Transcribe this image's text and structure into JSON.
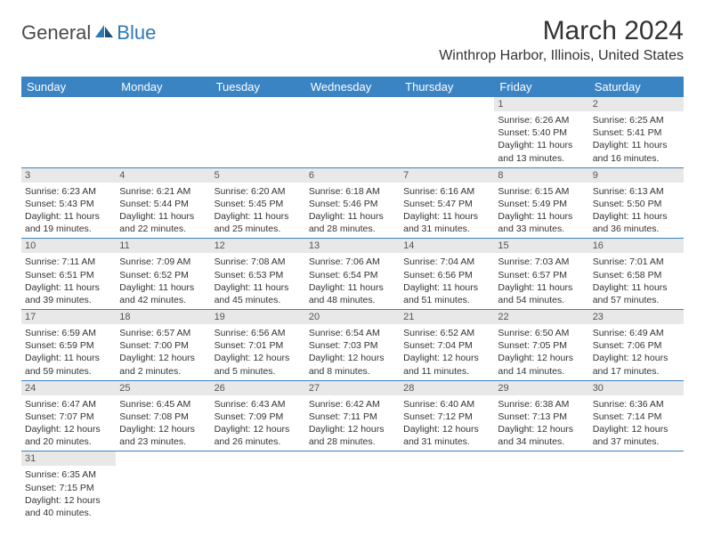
{
  "logo": {
    "text1": "General",
    "text2": "Blue"
  },
  "title": "March 2024",
  "location": "Winthrop Harbor, Illinois, United States",
  "colors": {
    "header_bg": "#3b84c4",
    "header_fg": "#ffffff",
    "daynum_bg": "#e8e8e8",
    "text": "#333333",
    "rule": "#3b84c4",
    "logo_dark": "#4a4a4a",
    "logo_blue": "#2f78b7"
  },
  "columns": [
    "Sunday",
    "Monday",
    "Tuesday",
    "Wednesday",
    "Thursday",
    "Friday",
    "Saturday"
  ],
  "weeks": [
    [
      {
        "n": "",
        "lines": []
      },
      {
        "n": "",
        "lines": []
      },
      {
        "n": "",
        "lines": []
      },
      {
        "n": "",
        "lines": []
      },
      {
        "n": "",
        "lines": []
      },
      {
        "n": "1",
        "lines": [
          "Sunrise: 6:26 AM",
          "Sunset: 5:40 PM",
          "Daylight: 11 hours and 13 minutes."
        ]
      },
      {
        "n": "2",
        "lines": [
          "Sunrise: 6:25 AM",
          "Sunset: 5:41 PM",
          "Daylight: 11 hours and 16 minutes."
        ]
      }
    ],
    [
      {
        "n": "3",
        "lines": [
          "Sunrise: 6:23 AM",
          "Sunset: 5:43 PM",
          "Daylight: 11 hours and 19 minutes."
        ]
      },
      {
        "n": "4",
        "lines": [
          "Sunrise: 6:21 AM",
          "Sunset: 5:44 PM",
          "Daylight: 11 hours and 22 minutes."
        ]
      },
      {
        "n": "5",
        "lines": [
          "Sunrise: 6:20 AM",
          "Sunset: 5:45 PM",
          "Daylight: 11 hours and 25 minutes."
        ]
      },
      {
        "n": "6",
        "lines": [
          "Sunrise: 6:18 AM",
          "Sunset: 5:46 PM",
          "Daylight: 11 hours and 28 minutes."
        ]
      },
      {
        "n": "7",
        "lines": [
          "Sunrise: 6:16 AM",
          "Sunset: 5:47 PM",
          "Daylight: 11 hours and 31 minutes."
        ]
      },
      {
        "n": "8",
        "lines": [
          "Sunrise: 6:15 AM",
          "Sunset: 5:49 PM",
          "Daylight: 11 hours and 33 minutes."
        ]
      },
      {
        "n": "9",
        "lines": [
          "Sunrise: 6:13 AM",
          "Sunset: 5:50 PM",
          "Daylight: 11 hours and 36 minutes."
        ]
      }
    ],
    [
      {
        "n": "10",
        "lines": [
          "Sunrise: 7:11 AM",
          "Sunset: 6:51 PM",
          "Daylight: 11 hours and 39 minutes."
        ]
      },
      {
        "n": "11",
        "lines": [
          "Sunrise: 7:09 AM",
          "Sunset: 6:52 PM",
          "Daylight: 11 hours and 42 minutes."
        ]
      },
      {
        "n": "12",
        "lines": [
          "Sunrise: 7:08 AM",
          "Sunset: 6:53 PM",
          "Daylight: 11 hours and 45 minutes."
        ]
      },
      {
        "n": "13",
        "lines": [
          "Sunrise: 7:06 AM",
          "Sunset: 6:54 PM",
          "Daylight: 11 hours and 48 minutes."
        ]
      },
      {
        "n": "14",
        "lines": [
          "Sunrise: 7:04 AM",
          "Sunset: 6:56 PM",
          "Daylight: 11 hours and 51 minutes."
        ]
      },
      {
        "n": "15",
        "lines": [
          "Sunrise: 7:03 AM",
          "Sunset: 6:57 PM",
          "Daylight: 11 hours and 54 minutes."
        ]
      },
      {
        "n": "16",
        "lines": [
          "Sunrise: 7:01 AM",
          "Sunset: 6:58 PM",
          "Daylight: 11 hours and 57 minutes."
        ]
      }
    ],
    [
      {
        "n": "17",
        "lines": [
          "Sunrise: 6:59 AM",
          "Sunset: 6:59 PM",
          "Daylight: 11 hours and 59 minutes."
        ]
      },
      {
        "n": "18",
        "lines": [
          "Sunrise: 6:57 AM",
          "Sunset: 7:00 PM",
          "Daylight: 12 hours and 2 minutes."
        ]
      },
      {
        "n": "19",
        "lines": [
          "Sunrise: 6:56 AM",
          "Sunset: 7:01 PM",
          "Daylight: 12 hours and 5 minutes."
        ]
      },
      {
        "n": "20",
        "lines": [
          "Sunrise: 6:54 AM",
          "Sunset: 7:03 PM",
          "Daylight: 12 hours and 8 minutes."
        ]
      },
      {
        "n": "21",
        "lines": [
          "Sunrise: 6:52 AM",
          "Sunset: 7:04 PM",
          "Daylight: 12 hours and 11 minutes."
        ]
      },
      {
        "n": "22",
        "lines": [
          "Sunrise: 6:50 AM",
          "Sunset: 7:05 PM",
          "Daylight: 12 hours and 14 minutes."
        ]
      },
      {
        "n": "23",
        "lines": [
          "Sunrise: 6:49 AM",
          "Sunset: 7:06 PM",
          "Daylight: 12 hours and 17 minutes."
        ]
      }
    ],
    [
      {
        "n": "24",
        "lines": [
          "Sunrise: 6:47 AM",
          "Sunset: 7:07 PM",
          "Daylight: 12 hours and 20 minutes."
        ]
      },
      {
        "n": "25",
        "lines": [
          "Sunrise: 6:45 AM",
          "Sunset: 7:08 PM",
          "Daylight: 12 hours and 23 minutes."
        ]
      },
      {
        "n": "26",
        "lines": [
          "Sunrise: 6:43 AM",
          "Sunset: 7:09 PM",
          "Daylight: 12 hours and 26 minutes."
        ]
      },
      {
        "n": "27",
        "lines": [
          "Sunrise: 6:42 AM",
          "Sunset: 7:11 PM",
          "Daylight: 12 hours and 28 minutes."
        ]
      },
      {
        "n": "28",
        "lines": [
          "Sunrise: 6:40 AM",
          "Sunset: 7:12 PM",
          "Daylight: 12 hours and 31 minutes."
        ]
      },
      {
        "n": "29",
        "lines": [
          "Sunrise: 6:38 AM",
          "Sunset: 7:13 PM",
          "Daylight: 12 hours and 34 minutes."
        ]
      },
      {
        "n": "30",
        "lines": [
          "Sunrise: 6:36 AM",
          "Sunset: 7:14 PM",
          "Daylight: 12 hours and 37 minutes."
        ]
      }
    ],
    [
      {
        "n": "31",
        "lines": [
          "Sunrise: 6:35 AM",
          "Sunset: 7:15 PM",
          "Daylight: 12 hours and 40 minutes."
        ]
      },
      {
        "n": "",
        "lines": []
      },
      {
        "n": "",
        "lines": []
      },
      {
        "n": "",
        "lines": []
      },
      {
        "n": "",
        "lines": []
      },
      {
        "n": "",
        "lines": []
      },
      {
        "n": "",
        "lines": []
      }
    ]
  ]
}
